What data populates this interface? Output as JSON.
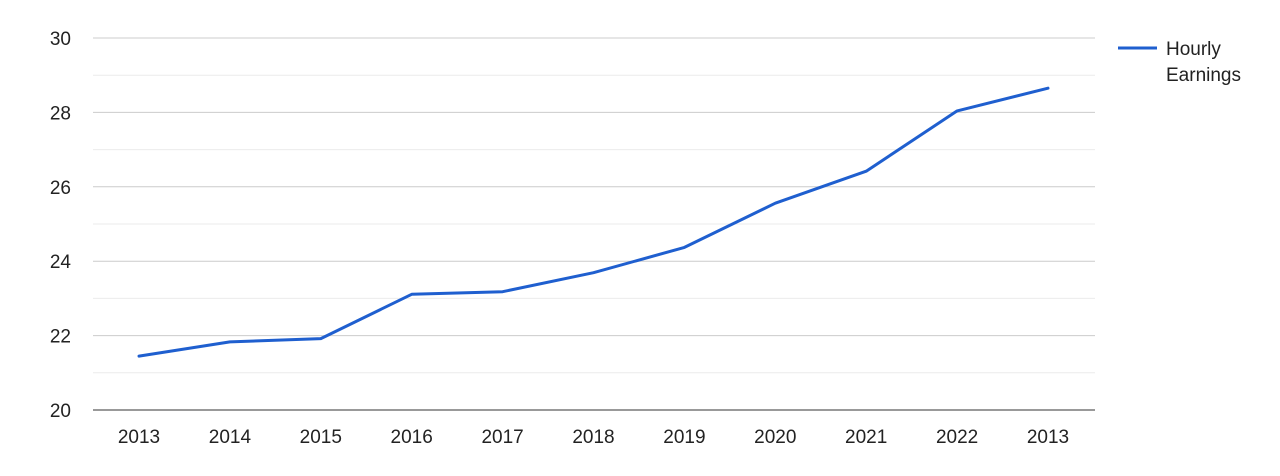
{
  "chart_data": {
    "type": "line",
    "title": "",
    "xlabel": "",
    "ylabel": "",
    "categories": [
      "2013",
      "2014",
      "2015",
      "2016",
      "2017",
      "2018",
      "2019",
      "2020",
      "2021",
      "2022",
      "2013"
    ],
    "series": [
      {
        "name": "Hourly Earnings",
        "values": [
          21.45,
          21.83,
          21.92,
          23.11,
          23.18,
          23.69,
          24.37,
          25.56,
          26.42,
          28.04,
          28.65
        ],
        "color": "#1f5fcf"
      }
    ],
    "ylim": [
      20,
      30
    ],
    "y_ticks": [
      "20",
      "22",
      "24",
      "26",
      "28",
      "30"
    ],
    "grid": true,
    "legend_position": "top-right",
    "legend_lines": [
      "Hourly",
      "Earnings"
    ]
  }
}
